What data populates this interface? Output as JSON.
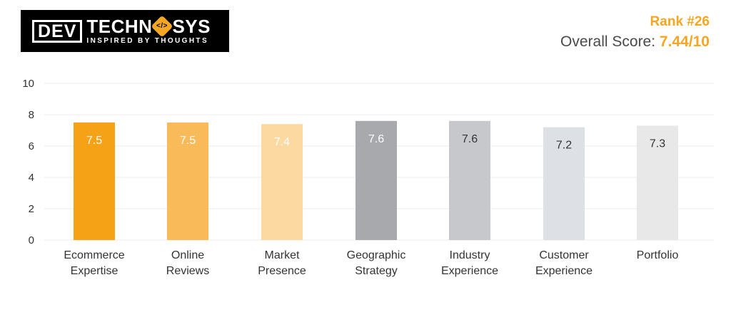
{
  "logo": {
    "dev": "DEV",
    "techno": "TECHN",
    "emblem": "</>",
    "sys": "SYS",
    "tagline": "INSPIRED BY THOUGHTS"
  },
  "rank": "Rank #26",
  "overall": {
    "label": "Overall Score: ",
    "score": "7.44/10"
  },
  "chart_data": {
    "type": "bar",
    "categories": [
      [
        "Ecommerce",
        "Expertise"
      ],
      [
        "Online",
        "Reviews"
      ],
      [
        "Market",
        "Presence"
      ],
      [
        "Geographic",
        "Strategy"
      ],
      [
        "Industry",
        "Experience"
      ],
      [
        "Customer",
        "Experience"
      ],
      [
        "Portfolio"
      ]
    ],
    "values": [
      7.5,
      7.5,
      7.4,
      7.6,
      7.6,
      7.2,
      7.3
    ],
    "value_labels": [
      "7.5",
      "7.5",
      "7.4",
      "7.6",
      "7.6",
      "7.2",
      "7.3"
    ],
    "colors": [
      "#f5a217",
      "#f9bb5a",
      "#fcd9a0",
      "#a8a9ac",
      "#c6c8cb",
      "#dde1e6",
      "#e8e8e8"
    ],
    "label_colors": [
      "#ffffff",
      "#ffffff",
      "#ffffff",
      "#ffffff",
      "#333333",
      "#333333",
      "#333333"
    ],
    "ylim": [
      0,
      10
    ],
    "yticks": [
      0,
      2,
      4,
      6,
      8,
      10
    ],
    "grid": true,
    "title": "",
    "xlabel": "",
    "ylabel": ""
  }
}
